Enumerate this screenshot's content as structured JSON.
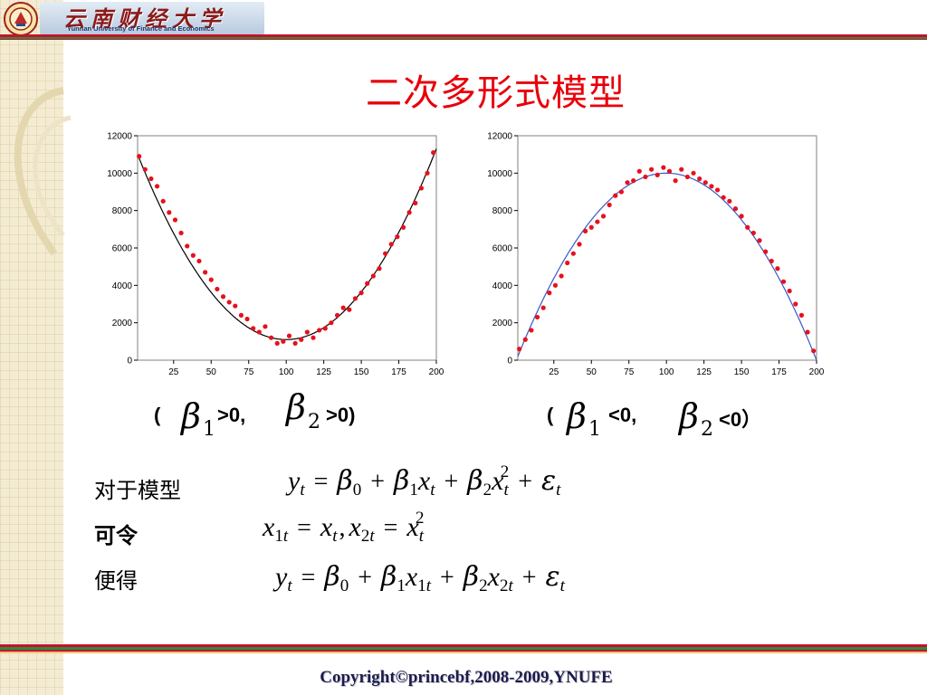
{
  "header": {
    "university_cn": "云南财经大学",
    "university_en": "Yunnan University of Finance and Economics",
    "seal_icon": "university-seal-icon"
  },
  "title": "二次多形式模型",
  "colors": {
    "title": "#e8000b",
    "points": "#e8101c",
    "fit_left": "#000000",
    "fit_right": "#3a56c8",
    "stripe_red": "#c8102e",
    "stripe_green": "#2e8b3a"
  },
  "conditions": {
    "left": {
      "open": "(",
      "beta": "β",
      "sub1": "1",
      "cmp1": ">0,",
      "sub2": "2",
      "cmp2": ">0)"
    },
    "right": {
      "open": "(",
      "beta": "β",
      "sub1": "1",
      "cmp1": "<0,",
      "sub2": "2",
      "cmp2": "<0）"
    }
  },
  "equations": {
    "label_model": "对于模型",
    "label_let": "可令",
    "label_then": "便得"
  },
  "footer": {
    "copyright": "Copyright©princebf,2008-2009,YNUFE"
  },
  "chart_data": [
    {
      "type": "scatter",
      "fit": "quadratic",
      "x_ticks": [
        25,
        50,
        75,
        100,
        125,
        150,
        175,
        200
      ],
      "y_ticks": [
        0,
        2000,
        4000,
        6000,
        8000,
        10000,
        12000
      ],
      "xlim": [
        1,
        200
      ],
      "ylim": [
        0,
        12000
      ],
      "grid": false,
      "fit_curve": {
        "vertex_x": 100,
        "vertex_y": 1100,
        "y_at_x1": 11000,
        "y_at_x200": 11300
      },
      "x": [
        2,
        6,
        10,
        14,
        18,
        22,
        26,
        30,
        34,
        38,
        42,
        46,
        50,
        54,
        58,
        62,
        66,
        70,
        74,
        78,
        82,
        86,
        90,
        94,
        98,
        102,
        106,
        110,
        114,
        118,
        122,
        126,
        130,
        134,
        138,
        142,
        146,
        150,
        154,
        158,
        162,
        166,
        170,
        174,
        178,
        182,
        186,
        190,
        194,
        198
      ],
      "values": [
        10900,
        10200,
        9700,
        9300,
        8500,
        7900,
        7500,
        6800,
        6100,
        5600,
        5300,
        4700,
        4300,
        3800,
        3400,
        3100,
        2900,
        2400,
        2200,
        1700,
        1500,
        1800,
        1200,
        900,
        1000,
        1300,
        900,
        1100,
        1500,
        1200,
        1600,
        1700,
        2000,
        2400,
        2800,
        2700,
        3300,
        3600,
        4100,
        4500,
        4900,
        5700,
        6200,
        6600,
        7100,
        7900,
        8400,
        9200,
        10000,
        11100
      ]
    },
    {
      "type": "scatter",
      "fit": "quadratic",
      "x_ticks": [
        25,
        50,
        75,
        100,
        125,
        150,
        175,
        200
      ],
      "y_ticks": [
        0,
        2000,
        4000,
        6000,
        8000,
        10000,
        12000
      ],
      "xlim": [
        1,
        200
      ],
      "ylim": [
        0,
        12000
      ],
      "grid": false,
      "fit_curve": {
        "vertex_x": 100,
        "vertex_y": 10000,
        "y_at_x1": 200,
        "y_at_x200": 0
      },
      "x": [
        2,
        6,
        10,
        14,
        18,
        22,
        26,
        30,
        34,
        38,
        42,
        46,
        50,
        54,
        58,
        62,
        66,
        70,
        74,
        78,
        82,
        86,
        90,
        94,
        98,
        102,
        106,
        110,
        114,
        118,
        122,
        126,
        130,
        134,
        138,
        142,
        146,
        150,
        154,
        158,
        162,
        166,
        170,
        174,
        178,
        182,
        186,
        190,
        194,
        198
      ],
      "values": [
        600,
        1100,
        1600,
        2300,
        2800,
        3600,
        4000,
        4500,
        5200,
        5700,
        6200,
        6900,
        7100,
        7400,
        7700,
        8300,
        8800,
        9000,
        9500,
        9600,
        10100,
        9800,
        10200,
        9900,
        10300,
        10100,
        9600,
        10200,
        9800,
        10000,
        9700,
        9500,
        9300,
        9100,
        8700,
        8500,
        8100,
        7700,
        7100,
        6800,
        6400,
        5800,
        5300,
        4900,
        4200,
        3700,
        3000,
        2400,
        1500,
        500
      ]
    }
  ]
}
